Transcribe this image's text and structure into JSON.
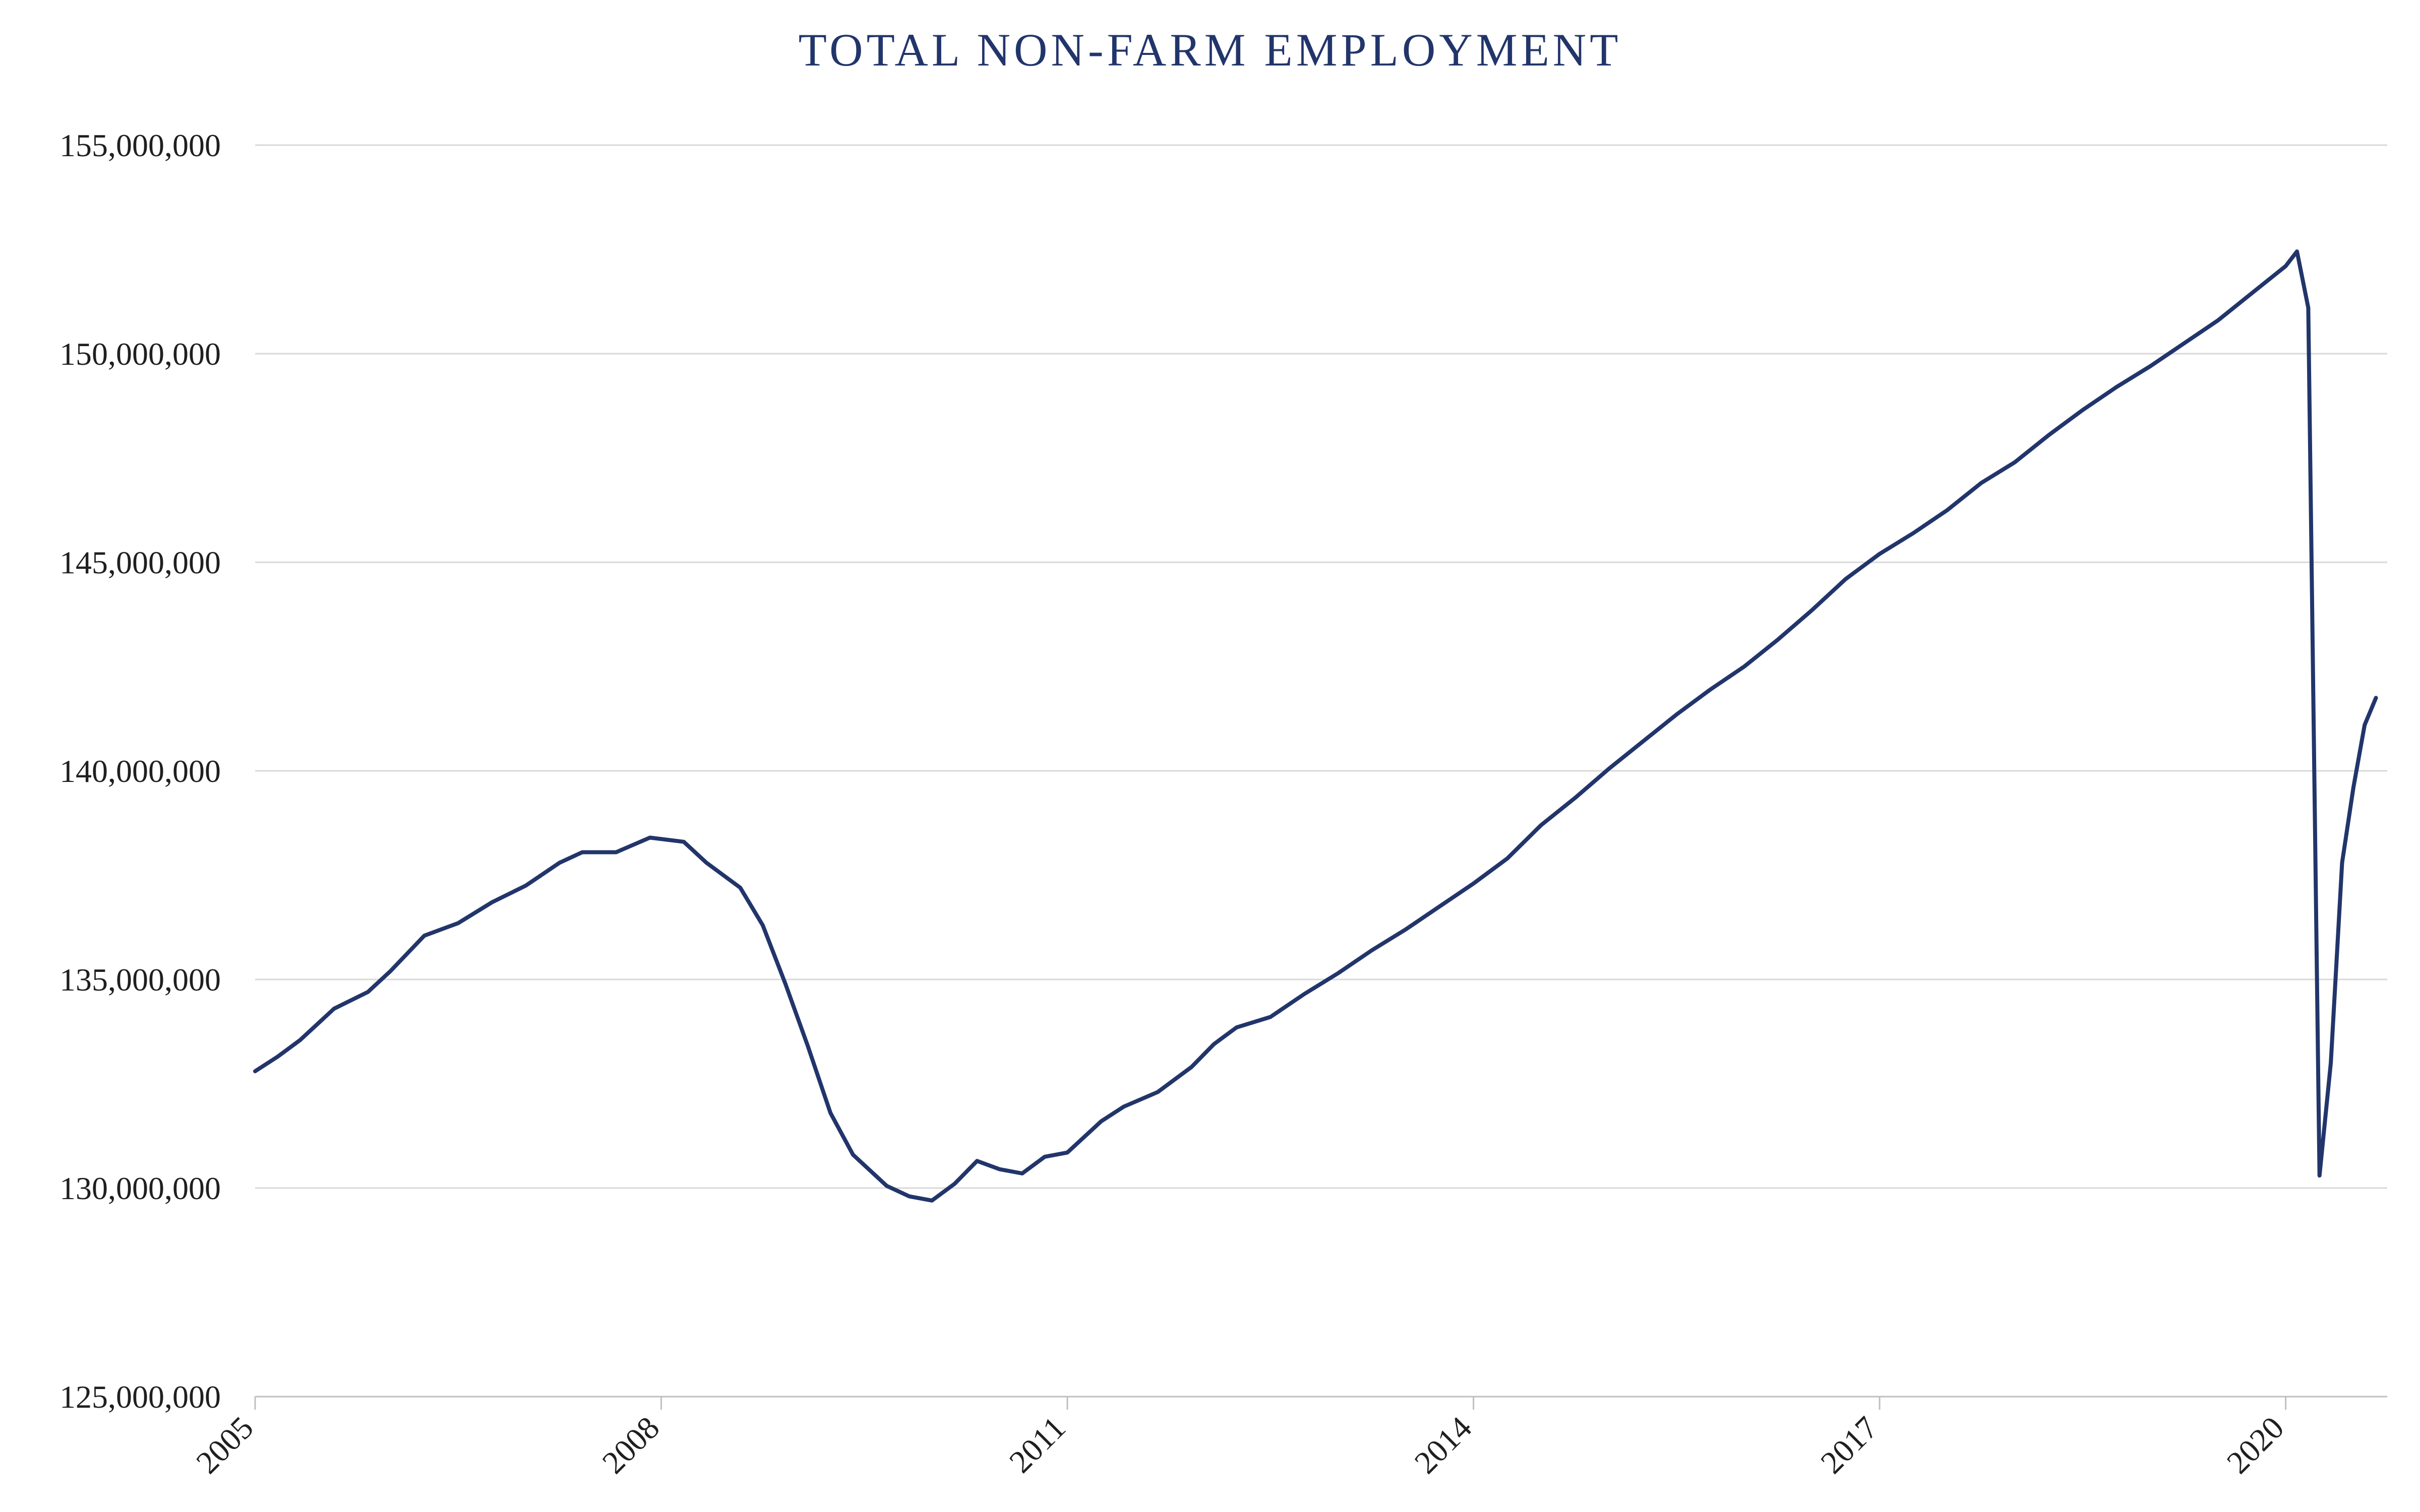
{
  "chart_data": {
    "type": "line",
    "title": "TOTAL NON-FARM EMPLOYMENT",
    "xlabel": "",
    "ylabel": "",
    "x_ticks": [
      "2005",
      "2008",
      "2011",
      "2014",
      "2017",
      "2020"
    ],
    "y_ticks": [
      "125,000,000",
      "130,000,000",
      "135,000,000",
      "140,000,000",
      "145,000,000",
      "150,000,000",
      "155,000,000"
    ],
    "y_tick_values": [
      125000000,
      130000000,
      135000000,
      140000000,
      145000000,
      150000000,
      155000000
    ],
    "ylim": [
      125000000,
      155000000
    ],
    "xlim": [
      "2005-01",
      "2020-10"
    ],
    "grid": true,
    "legend": "none",
    "colors": {
      "series": "#22356b",
      "grid": "#d9d9d9",
      "title": "#22356b"
    },
    "series": [
      {
        "points": [
          [
            "2005-01",
            132800000
          ],
          [
            "2005-03",
            133150000
          ],
          [
            "2005-05",
            133550000
          ],
          [
            "2005-08",
            134300000
          ],
          [
            "2005-11",
            134700000
          ],
          [
            "2006-01",
            135200000
          ],
          [
            "2006-04",
            136050000
          ],
          [
            "2006-07",
            136350000
          ],
          [
            "2006-10",
            136850000
          ],
          [
            "2007-01",
            137250000
          ],
          [
            "2007-04",
            137800000
          ],
          [
            "2007-06",
            138050000
          ],
          [
            "2007-09",
            138050000
          ],
          [
            "2007-12",
            138400000
          ],
          [
            "2008-03",
            138300000
          ],
          [
            "2008-05",
            137800000
          ],
          [
            "2008-08",
            137200000
          ],
          [
            "2008-10",
            136300000
          ],
          [
            "2008-12",
            134900000
          ],
          [
            "2009-02",
            133400000
          ],
          [
            "2009-04",
            131800000
          ],
          [
            "2009-06",
            130800000
          ],
          [
            "2009-09",
            130050000
          ],
          [
            "2009-11",
            129800000
          ],
          [
            "2010-01",
            129700000
          ],
          [
            "2010-03",
            130100000
          ],
          [
            "2010-05",
            130650000
          ],
          [
            "2010-07",
            130450000
          ],
          [
            "2010-09",
            130350000
          ],
          [
            "2010-11",
            130750000
          ],
          [
            "2011-01",
            130850000
          ],
          [
            "2011-04",
            131600000
          ],
          [
            "2011-06",
            131950000
          ],
          [
            "2011-09",
            132300000
          ],
          [
            "2011-12",
            132900000
          ],
          [
            "2012-02",
            133450000
          ],
          [
            "2012-04",
            133850000
          ],
          [
            "2012-07",
            134100000
          ],
          [
            "2012-10",
            134650000
          ],
          [
            "2013-01",
            135150000
          ],
          [
            "2013-04",
            135700000
          ],
          [
            "2013-07",
            136200000
          ],
          [
            "2013-10",
            136750000
          ],
          [
            "2014-01",
            137300000
          ],
          [
            "2014-04",
            137900000
          ],
          [
            "2014-07",
            138700000
          ],
          [
            "2014-10",
            139350000
          ],
          [
            "2015-01",
            140050000
          ],
          [
            "2015-04",
            140700000
          ],
          [
            "2015-07",
            141350000
          ],
          [
            "2015-10",
            141950000
          ],
          [
            "2016-01",
            142500000
          ],
          [
            "2016-04",
            143150000
          ],
          [
            "2016-07",
            143850000
          ],
          [
            "2016-10",
            144600000
          ],
          [
            "2017-01",
            145200000
          ],
          [
            "2017-04",
            145700000
          ],
          [
            "2017-07",
            146250000
          ],
          [
            "2017-10",
            146900000
          ],
          [
            "2018-01",
            147400000
          ],
          [
            "2018-04",
            148050000
          ],
          [
            "2018-07",
            148650000
          ],
          [
            "2018-10",
            149200000
          ],
          [
            "2019-01",
            149700000
          ],
          [
            "2019-04",
            150250000
          ],
          [
            "2019-07",
            150800000
          ],
          [
            "2019-10",
            151450000
          ],
          [
            "2020-01",
            152100000
          ],
          [
            "2020-02",
            152450000
          ],
          [
            "2020-03",
            151100000
          ],
          [
            "2020-04",
            130300000
          ],
          [
            "2020-05",
            133000000
          ],
          [
            "2020-06",
            137800000
          ],
          [
            "2020-07",
            139600000
          ],
          [
            "2020-08",
            141100000
          ],
          [
            "2020-09",
            141750000
          ]
        ]
      }
    ]
  }
}
